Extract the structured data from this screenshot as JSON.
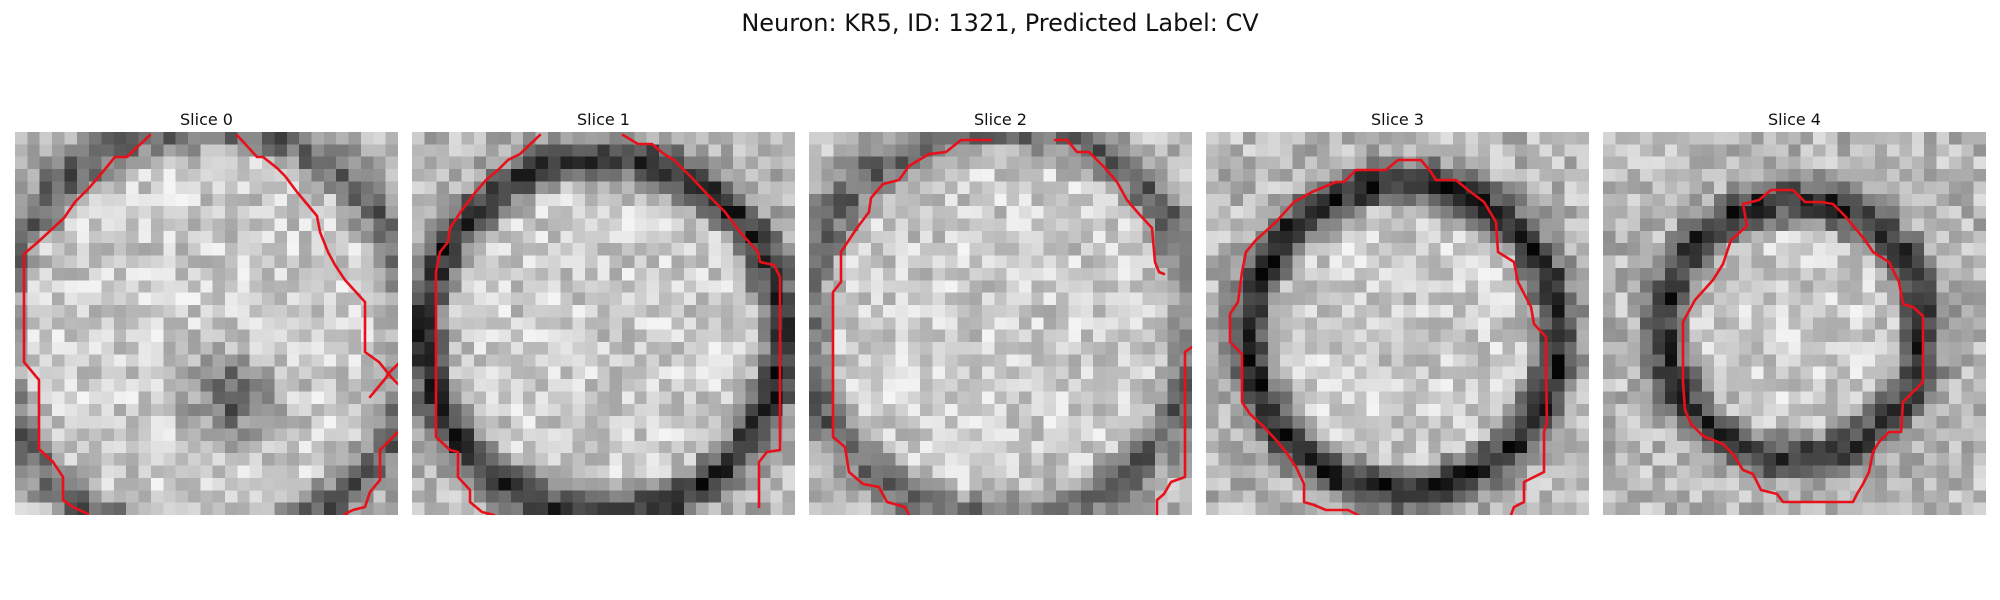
{
  "figure": {
    "suptitle": "Neuron: KR5, ID: 1321, Predicted Label: CV"
  },
  "style": {
    "contour_color": "#e8101a",
    "colormap": "grayscale"
  },
  "slices": [
    {
      "title": "Slice 0"
    },
    {
      "title": "Slice 1"
    },
    {
      "title": "Slice 2"
    },
    {
      "title": "Slice 3"
    },
    {
      "title": "Slice 4"
    }
  ]
}
